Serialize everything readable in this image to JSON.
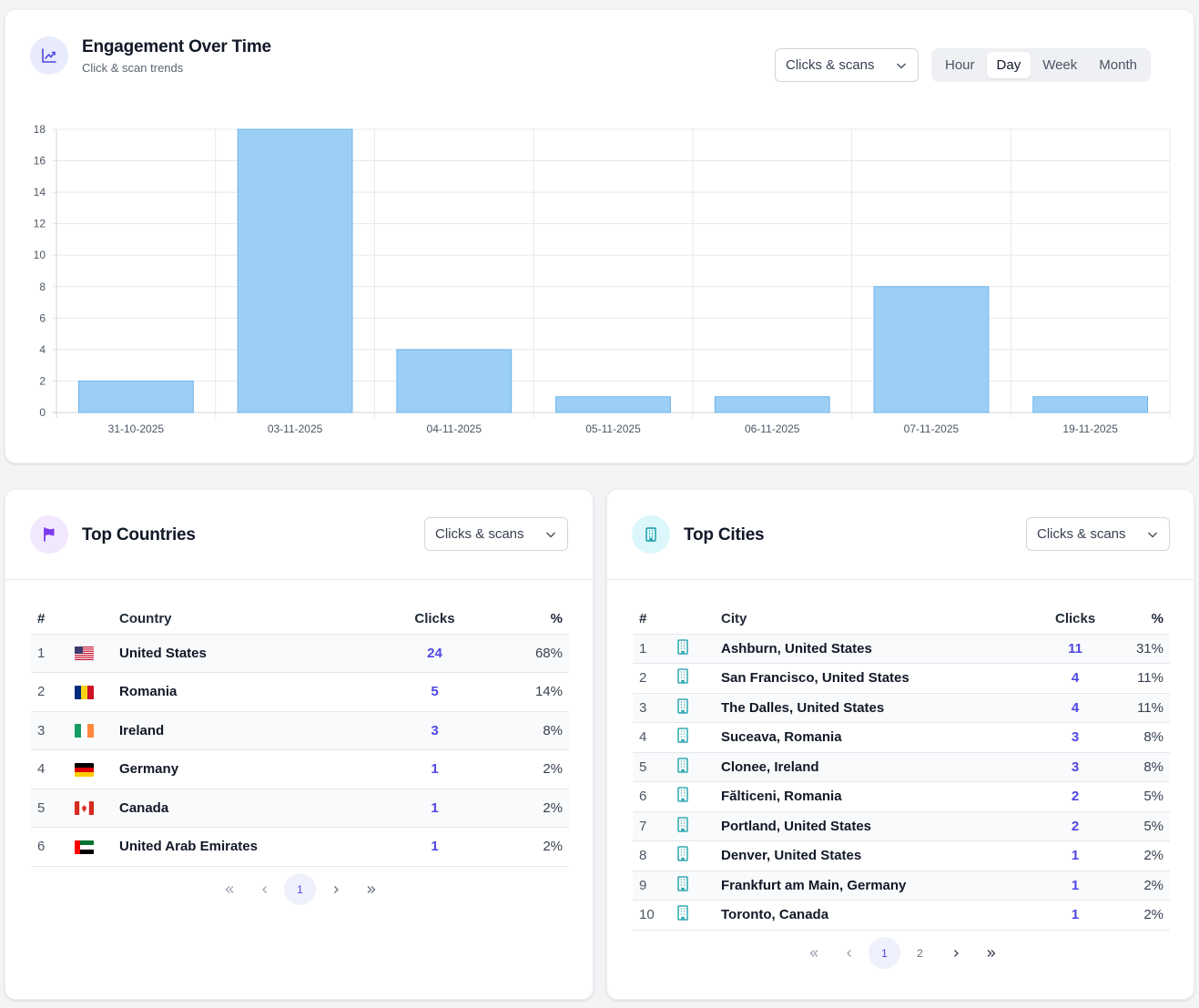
{
  "engagement": {
    "title": "Engagement Over Time",
    "subtitle": "Click & scan trends",
    "icon": "line-chart-icon",
    "metric_select": "Clicks & scans",
    "granularity": [
      "Hour",
      "Day",
      "Week",
      "Month"
    ],
    "granularity_selected": "Day"
  },
  "chart_data": {
    "type": "bar",
    "categories": [
      "31-10-2025",
      "03-11-2025",
      "04-11-2025",
      "05-11-2025",
      "06-11-2025",
      "07-11-2025",
      "19-11-2025"
    ],
    "values": [
      2,
      18,
      4,
      1,
      1,
      8,
      1
    ],
    "ylim": [
      0,
      18
    ],
    "yticks": [
      0,
      2,
      4,
      6,
      8,
      10,
      12,
      14,
      16,
      18
    ],
    "grid": true,
    "bar_color": "#9dcff5",
    "bar_border": "#6cb4ec"
  },
  "countries": {
    "title": "Top Countries",
    "icon": "flag-icon",
    "metric_select": "Clicks & scans",
    "headers": {
      "rank": "#",
      "name": "Country",
      "clicks": "Clicks",
      "pct": "%"
    },
    "rows": [
      {
        "rank": "1",
        "flag": "us-flag-icon",
        "name": "United States",
        "clicks": "24",
        "pct": "68%"
      },
      {
        "rank": "2",
        "flag": "ro-flag-icon",
        "name": "Romania",
        "clicks": "5",
        "pct": "14%"
      },
      {
        "rank": "3",
        "flag": "ie-flag-icon",
        "name": "Ireland",
        "clicks": "3",
        "pct": "8%"
      },
      {
        "rank": "4",
        "flag": "de-flag-icon",
        "name": "Germany",
        "clicks": "1",
        "pct": "2%"
      },
      {
        "rank": "5",
        "flag": "ca-flag-icon",
        "name": "Canada",
        "clicks": "1",
        "pct": "2%"
      },
      {
        "rank": "6",
        "flag": "ae-flag-icon",
        "name": "United Arab Emirates",
        "clicks": "1",
        "pct": "2%"
      }
    ],
    "pages": [
      "1"
    ],
    "current_page": "1"
  },
  "cities": {
    "title": "Top Cities",
    "icon": "building-icon",
    "metric_select": "Clicks & scans",
    "headers": {
      "rank": "#",
      "name": "City",
      "clicks": "Clicks",
      "pct": "%"
    },
    "rows": [
      {
        "rank": "1",
        "name": "Ashburn, United States",
        "clicks": "11",
        "pct": "31%"
      },
      {
        "rank": "2",
        "name": "San Francisco, United States",
        "clicks": "4",
        "pct": "11%"
      },
      {
        "rank": "3",
        "name": "The Dalles, United States",
        "clicks": "4",
        "pct": "11%"
      },
      {
        "rank": "4",
        "name": "Suceava, Romania",
        "clicks": "3",
        "pct": "8%"
      },
      {
        "rank": "5",
        "name": "Clonee, Ireland",
        "clicks": "3",
        "pct": "8%"
      },
      {
        "rank": "6",
        "name": "Fălticeni, Romania",
        "clicks": "2",
        "pct": "5%"
      },
      {
        "rank": "7",
        "name": "Portland, United States",
        "clicks": "2",
        "pct": "5%"
      },
      {
        "rank": "8",
        "name": "Denver, United States",
        "clicks": "1",
        "pct": "2%"
      },
      {
        "rank": "9",
        "name": "Frankfurt am Main, Germany",
        "clicks": "1",
        "pct": "2%"
      },
      {
        "rank": "10",
        "name": "Toronto, Canada",
        "clicks": "1",
        "pct": "2%"
      }
    ],
    "pages": [
      "1",
      "2"
    ],
    "current_page": "1"
  },
  "colors": {
    "accent": "#4f46e5",
    "engagement_badge_bg": "#e8ebfb",
    "countries_badge_bg": "#f1e8fd",
    "cities_badge_bg": "#dcf7fb"
  }
}
